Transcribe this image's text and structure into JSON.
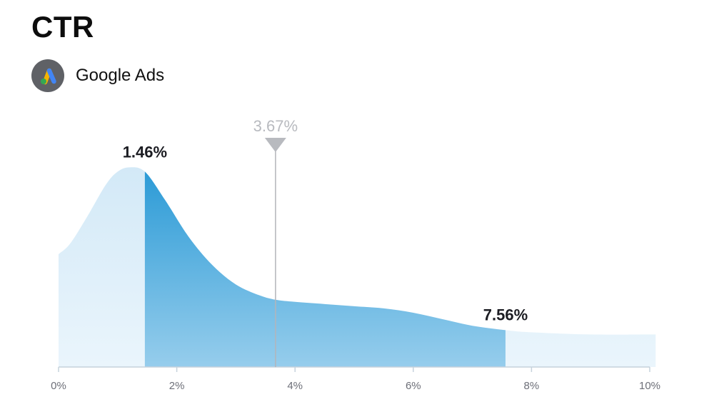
{
  "header": {
    "title": "CTR",
    "source_name": "Google Ads",
    "source_icon": "google-ads-logo"
  },
  "chart_data": {
    "type": "area",
    "title": "CTR",
    "xlabel": "",
    "ylabel": "",
    "xlim": [
      0,
      10
    ],
    "x_ticks": [
      0,
      2,
      4,
      6,
      8,
      10
    ],
    "x_tick_labels": [
      "0%",
      "2%",
      "4%",
      "6%",
      "8%",
      "10%"
    ],
    "grid": false,
    "density_curve": {
      "x": [
        0,
        0.2,
        0.5,
        0.8,
        1.0,
        1.2,
        1.46,
        1.8,
        2.2,
        2.6,
        3.0,
        3.4,
        3.67,
        4.0,
        4.5,
        5.0,
        5.5,
        6.0,
        6.5,
        7.0,
        7.56,
        8.0,
        9.0,
        10.0,
        10.1
      ],
      "y": [
        0.52,
        0.57,
        0.7,
        0.84,
        0.9,
        0.92,
        0.9,
        0.77,
        0.6,
        0.47,
        0.38,
        0.33,
        0.31,
        0.3,
        0.29,
        0.28,
        0.27,
        0.25,
        0.22,
        0.19,
        0.17,
        0.16,
        0.15,
        0.15,
        0.15
      ]
    },
    "highlighted_range": {
      "low": 1.46,
      "high": 7.56,
      "low_label": "1.46%",
      "high_label": "7.56%"
    },
    "marker": {
      "value": 3.67,
      "label": "3.67%"
    },
    "colors": {
      "outer_fill": "#dbedf8",
      "range_fill_top": "#2a9ad6",
      "range_fill_bottom": "#96cdec",
      "marker": "#b8babf",
      "axis": "#c6d2dc"
    }
  }
}
